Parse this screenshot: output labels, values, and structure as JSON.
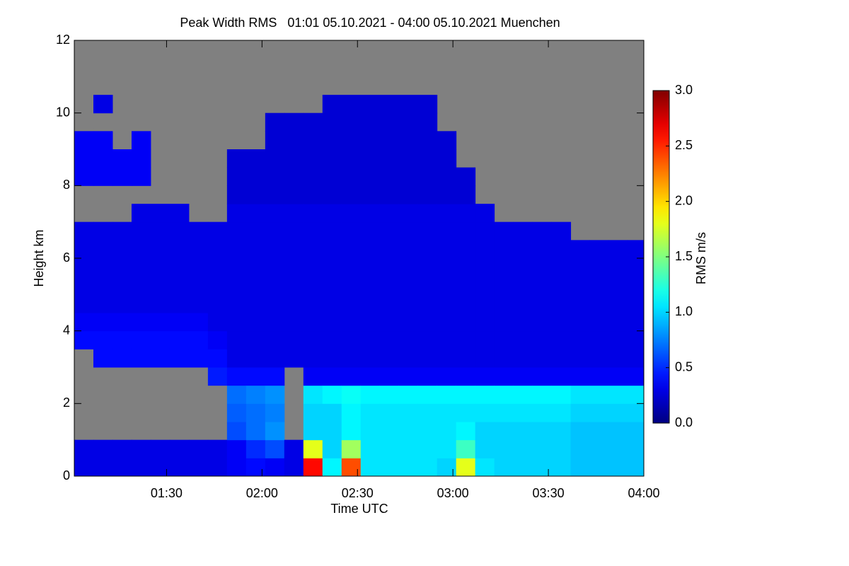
{
  "chart_data": {
    "type": "heatmap",
    "title": "Peak Width RMS   01:01 05.10.2021 - 04:00 05.10.2021 Muenchen",
    "x_label": "Time UTC",
    "y_label": "Height km",
    "colorbar_label": "RMS m/s",
    "colormap": "jet",
    "missing_color": "#808080",
    "xlim": [
      61,
      240
    ],
    "xticks": [
      {
        "value": 90,
        "label": "01:30"
      },
      {
        "value": 120,
        "label": "02:00"
      },
      {
        "value": 150,
        "label": "02:30"
      },
      {
        "value": 180,
        "label": "03:00"
      },
      {
        "value": 210,
        "label": "03:30"
      },
      {
        "value": 240,
        "label": "04:00"
      }
    ],
    "ylim": [
      0,
      12
    ],
    "yticks": [
      0,
      2,
      4,
      6,
      8,
      10,
      12
    ],
    "zlim": [
      0,
      3
    ],
    "zticks": [
      {
        "value": 0,
        "label": "0.0"
      },
      0.5,
      {
        "value": 1,
        "label": "1.0"
      },
      1.5,
      {
        "value": 2,
        "label": "2.0"
      },
      2.5,
      {
        "value": 3,
        "label": "3.0"
      }
    ],
    "xbins": [
      61,
      67,
      73,
      79,
      85,
      91,
      97,
      103,
      109,
      115,
      121,
      127,
      133,
      139,
      145,
      151,
      157,
      163,
      169,
      175,
      181,
      187,
      193,
      199,
      205,
      211,
      217,
      223,
      229,
      235,
      240
    ],
    "ybins": [
      0,
      0.5,
      1,
      1.5,
      2,
      2.5,
      3,
      3.5,
      4,
      4.5,
      5,
      5.5,
      6,
      6.5,
      7,
      7.5,
      8,
      8.5,
      9,
      9.5,
      10,
      10.5,
      11,
      11.5,
      12
    ],
    "values": [
      [
        0.3,
        0.3,
        null,
        null,
        null,
        null,
        null,
        0.4,
        0.35,
        0.3,
        0.3,
        0.3,
        0.3,
        0.3,
        null,
        null,
        0.35,
        0.35,
        0.35,
        null,
        null,
        null,
        null,
        null
      ],
      [
        0.3,
        0.3,
        null,
        null,
        null,
        null,
        0.4,
        0.4,
        0.35,
        0.3,
        0.3,
        0.3,
        0.3,
        0.3,
        null,
        null,
        0.35,
        0.35,
        0.35,
        null,
        0.3,
        null,
        null,
        null
      ],
      [
        0.3,
        0.3,
        null,
        null,
        null,
        null,
        0.4,
        0.4,
        0.35,
        0.3,
        0.3,
        0.3,
        0.3,
        0.3,
        null,
        null,
        0.35,
        0.35,
        null,
        null,
        null,
        null,
        null,
        null
      ],
      [
        0.3,
        0.3,
        null,
        null,
        null,
        null,
        0.4,
        0.4,
        0.35,
        0.3,
        0.3,
        0.3,
        0.3,
        0.3,
        0.3,
        null,
        0.35,
        0.35,
        0.35,
        null,
        null,
        null,
        null,
        null
      ],
      [
        0.3,
        0.3,
        null,
        null,
        null,
        null,
        0.4,
        0.4,
        0.35,
        0.3,
        0.3,
        0.3,
        0.3,
        0.3,
        0.3,
        null,
        null,
        null,
        null,
        null,
        null,
        null,
        null,
        null
      ],
      [
        0.3,
        0.3,
        null,
        null,
        null,
        null,
        0.4,
        0.4,
        0.35,
        0.3,
        0.3,
        0.3,
        0.3,
        0.3,
        0.3,
        null,
        null,
        null,
        null,
        null,
        null,
        null,
        null,
        null
      ],
      [
        0.3,
        0.3,
        null,
        null,
        null,
        null,
        0.4,
        0.4,
        0.35,
        0.3,
        0.3,
        0.3,
        0.3,
        0.3,
        null,
        null,
        null,
        null,
        null,
        null,
        null,
        null,
        null,
        null
      ],
      [
        0.3,
        0.3,
        null,
        null,
        null,
        0.45,
        0.4,
        0.35,
        0.3,
        0.3,
        0.3,
        0.3,
        0.3,
        0.3,
        null,
        null,
        null,
        null,
        null,
        null,
        null,
        null,
        null,
        null
      ],
      [
        0.35,
        0.35,
        0.6,
        0.65,
        0.7,
        0.4,
        0.3,
        0.3,
        0.3,
        0.3,
        0.3,
        0.3,
        0.3,
        0.3,
        0.3,
        0.25,
        0.25,
        0.25,
        null,
        null,
        null,
        null,
        null,
        null
      ],
      [
        0.4,
        0.5,
        0.7,
        0.7,
        0.75,
        0.4,
        0.3,
        0.3,
        0.3,
        0.3,
        0.3,
        0.3,
        0.3,
        0.3,
        0.3,
        0.25,
        0.25,
        0.25,
        null,
        null,
        null,
        null,
        null,
        null
      ],
      [
        0.35,
        0.6,
        0.8,
        0.75,
        0.8,
        0.4,
        0.3,
        0.3,
        0.3,
        0.3,
        0.3,
        0.3,
        0.3,
        0.3,
        0.3,
        0.25,
        0.25,
        0.25,
        0.25,
        0.25,
        null,
        null,
        null,
        null
      ],
      [
        0.3,
        0.3,
        null,
        null,
        null,
        null,
        0.3,
        0.3,
        0.3,
        0.3,
        0.3,
        0.3,
        0.3,
        0.3,
        0.3,
        0.25,
        0.25,
        0.25,
        0.25,
        0.25,
        null,
        null,
        null,
        null
      ],
      [
        2.6,
        1.8,
        1.0,
        1.0,
        1.05,
        0.35,
        0.3,
        0.3,
        0.3,
        0.3,
        0.3,
        0.3,
        0.3,
        0.3,
        0.3,
        0.25,
        0.25,
        0.25,
        0.25,
        0.25,
        null,
        null,
        null,
        null
      ],
      [
        1.1,
        1.0,
        1.0,
        1.0,
        1.1,
        0.35,
        0.3,
        0.3,
        0.3,
        0.3,
        0.3,
        0.3,
        0.3,
        0.3,
        0.3,
        0.25,
        0.25,
        0.25,
        0.25,
        0.25,
        0.25,
        null,
        null,
        null
      ],
      [
        2.4,
        1.6,
        1.1,
        1.1,
        1.15,
        0.35,
        0.3,
        0.3,
        0.3,
        0.3,
        0.3,
        0.3,
        0.3,
        0.3,
        0.3,
        0.25,
        0.25,
        0.25,
        0.25,
        0.25,
        0.25,
        null,
        null,
        null
      ],
      [
        1.05,
        1.05,
        1.05,
        1.05,
        1.1,
        0.35,
        0.3,
        0.3,
        0.3,
        0.3,
        0.3,
        0.3,
        0.3,
        0.3,
        0.3,
        0.25,
        0.25,
        0.25,
        0.25,
        0.25,
        0.25,
        null,
        null,
        null
      ],
      [
        1.05,
        1.05,
        1.05,
        1.05,
        1.1,
        0.35,
        0.3,
        0.3,
        0.3,
        0.3,
        0.3,
        0.3,
        0.3,
        0.3,
        0.3,
        0.25,
        0.25,
        0.25,
        0.25,
        0.25,
        0.25,
        null,
        null,
        null
      ],
      [
        1.05,
        1.05,
        1.05,
        1.05,
        1.1,
        0.35,
        0.3,
        0.3,
        0.3,
        0.3,
        0.3,
        0.3,
        0.3,
        0.3,
        0.3,
        0.25,
        0.25,
        0.25,
        0.25,
        0.25,
        0.25,
        null,
        null,
        null
      ],
      [
        1.05,
        1.05,
        1.05,
        1.05,
        1.1,
        0.35,
        0.3,
        0.3,
        0.3,
        0.3,
        0.3,
        0.3,
        0.3,
        0.3,
        0.3,
        0.25,
        0.25,
        0.25,
        0.25,
        0.25,
        0.25,
        null,
        null,
        null
      ],
      [
        1.0,
        1.05,
        1.05,
        1.05,
        1.1,
        0.35,
        0.3,
        0.3,
        0.3,
        0.3,
        0.3,
        0.3,
        0.3,
        0.3,
        0.3,
        0.25,
        0.25,
        0.25,
        0.25,
        null,
        null,
        null,
        null,
        null
      ],
      [
        1.8,
        1.3,
        1.1,
        1.05,
        1.1,
        0.35,
        0.3,
        0.3,
        0.3,
        0.3,
        0.3,
        0.3,
        0.3,
        0.3,
        0.3,
        0.25,
        0.25,
        null,
        null,
        null,
        null,
        null,
        null,
        null
      ],
      [
        1.05,
        1.0,
        1.0,
        1.05,
        1.1,
        0.35,
        0.3,
        0.3,
        0.3,
        0.3,
        0.3,
        0.3,
        0.3,
        0.3,
        0.3,
        null,
        null,
        null,
        null,
        null,
        null,
        null,
        null,
        null
      ],
      [
        1.0,
        1.0,
        1.0,
        1.05,
        1.1,
        0.35,
        0.3,
        0.3,
        0.3,
        0.3,
        0.3,
        0.3,
        0.3,
        0.3,
        null,
        null,
        null,
        null,
        null,
        null,
        null,
        null,
        null,
        null
      ],
      [
        1.0,
        1.0,
        1.0,
        1.05,
        1.1,
        0.35,
        0.3,
        0.3,
        0.3,
        0.3,
        0.3,
        0.3,
        0.3,
        0.3,
        null,
        null,
        null,
        null,
        null,
        null,
        null,
        null,
        null,
        null
      ],
      [
        1.0,
        1.0,
        1.0,
        1.05,
        1.1,
        0.35,
        0.3,
        0.3,
        0.3,
        0.3,
        0.3,
        0.3,
        0.3,
        0.3,
        null,
        null,
        null,
        null,
        null,
        null,
        null,
        null,
        null,
        null
      ],
      [
        1.0,
        1.0,
        1.0,
        1.05,
        1.1,
        0.35,
        0.3,
        0.3,
        0.3,
        0.3,
        0.3,
        0.3,
        0.3,
        0.3,
        null,
        null,
        null,
        null,
        null,
        null,
        null,
        null,
        null,
        null
      ],
      [
        0.95,
        0.95,
        0.95,
        1.0,
        1.05,
        0.35,
        0.3,
        0.3,
        0.3,
        0.3,
        0.3,
        0.3,
        0.3,
        null,
        null,
        null,
        null,
        null,
        null,
        null,
        null,
        null,
        null,
        null
      ],
      [
        0.95,
        0.95,
        0.95,
        1.0,
        1.05,
        0.35,
        0.3,
        0.3,
        0.3,
        0.3,
        0.3,
        0.3,
        0.3,
        null,
        null,
        null,
        null,
        null,
        null,
        null,
        null,
        null,
        null,
        null
      ],
      [
        0.95,
        0.95,
        0.95,
        1.0,
        1.05,
        0.35,
        0.3,
        0.3,
        0.3,
        0.3,
        0.3,
        0.3,
        0.3,
        null,
        null,
        null,
        null,
        null,
        null,
        null,
        null,
        null,
        null,
        null
      ],
      [
        0.95,
        0.95,
        0.95,
        1.0,
        1.05,
        0.35,
        0.3,
        0.3,
        0.3,
        0.3,
        0.3,
        0.3,
        0.3,
        null,
        null,
        null,
        null,
        null,
        null,
        null,
        null,
        null,
        null,
        null
      ]
    ]
  }
}
